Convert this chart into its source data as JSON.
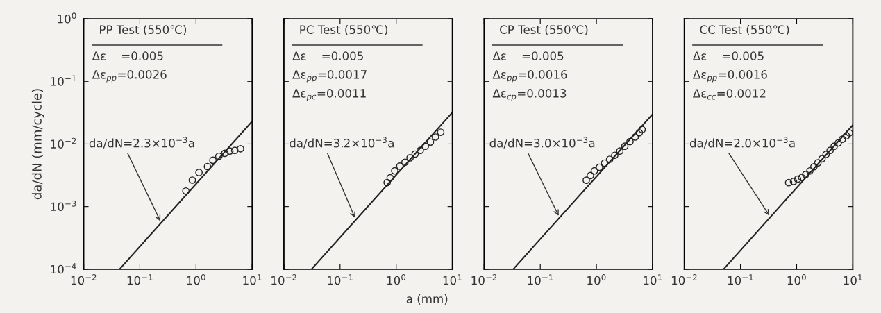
{
  "chart_data": [
    {
      "type": "scatter",
      "title": "PP Test (550℃)",
      "ylabel": "da/dN (mm/cycle)",
      "log": "xy",
      "xlim": [
        0.01,
        10
      ],
      "ylim": [
        0.0001,
        1
      ],
      "xticks": [
        {
          "value": 0.01,
          "label": "10$^{−2}$"
        },
        {
          "value": 0.1,
          "label": "10$^{−1}$"
        },
        {
          "value": 1,
          "label": "10$^{0}$"
        },
        {
          "value": 10,
          "label": "10$^{1}$"
        }
      ],
      "yticks": [
        {
          "value": 0.0001,
          "label": "10$^{−4}$"
        },
        {
          "value": 0.001,
          "label": "10$^{−3}$"
        },
        {
          "value": 0.01,
          "label": "10$^{−2}$"
        },
        {
          "value": 0.1,
          "label": "10$^{−1}$"
        },
        {
          "value": 1,
          "label": "10$^{0}$"
        }
      ],
      "series": [
        {
          "marker": "circle",
          "color": "#222222",
          "x": [
            0.66,
            0.86,
            1.13,
            1.6,
            2.0,
            2.55,
            3.25,
            4.0,
            4.9,
            6.2
          ],
          "values": [
            0.00177,
            0.00265,
            0.0035,
            0.00435,
            0.0055,
            0.00635,
            0.0071,
            0.0077,
            0.0079,
            0.0084
          ]
        },
        {
          "type": "line",
          "marker": "none",
          "color": "#222222",
          "x": [
            0.0435,
            10
          ],
          "values": [
            0.0001,
            0.023
          ]
        }
      ],
      "annotations": [
        "Δε    =0.005",
        "Δε$_{pp}$=0.0026",
        {
          "text": "da/dN=2.3×10$^{−3}$a",
          "x": 0.24,
          "y": 0.00055
        }
      ]
    },
    {
      "type": "scatter",
      "title": "PC Test (550℃)",
      "xlabel": "a (mm)",
      "log": "xy",
      "xlim": [
        0.01,
        10
      ],
      "ylim": [
        0.0001,
        1
      ],
      "tick_labels": "x",
      "xticks": [
        {
          "value": 0.01,
          "label": "10$^{−2}$"
        },
        {
          "value": 0.1,
          "label": "10$^{−1}$"
        },
        {
          "value": 1,
          "label": "10$^{0}$"
        },
        {
          "value": 10,
          "label": "10$^{1}$"
        }
      ],
      "yticks": [
        0.0001,
        0.001,
        0.01,
        0.1,
        1
      ],
      "series": [
        {
          "marker": "circle",
          "color": "#222222",
          "x": [
            0.69,
            0.78,
            0.94,
            1.16,
            1.43,
            1.76,
            2.17,
            2.68,
            3.3,
            4.06,
            5.0,
            6.2
          ],
          "values": [
            0.00242,
            0.00288,
            0.00372,
            0.00443,
            0.0051,
            0.006,
            0.0069,
            0.0079,
            0.0092,
            0.0107,
            0.0129,
            0.0154
          ]
        },
        {
          "type": "line",
          "marker": "none",
          "color": "#222222",
          "x": [
            0.031,
            10
          ],
          "values": [
            0.0001,
            0.032
          ]
        }
      ],
      "annotations": [
        "Δε    =0.005",
        "Δε$_{pp}$=0.0017",
        "Δε$_{pc}$=0.0011",
        {
          "text": "da/dN=3.2×10$^{−3}$a",
          "x": 0.19,
          "y": 0.00062
        }
      ]
    },
    {
      "type": "scatter",
      "title": "CP Test (550℃)",
      "log": "xy",
      "xlim": [
        0.01,
        10
      ],
      "ylim": [
        0.0001,
        1
      ],
      "tick_labels": "x",
      "xticks": [
        {
          "value": 0.01,
          "label": "10$^{−2}$"
        },
        {
          "value": 0.1,
          "label": "10$^{−1}$"
        },
        {
          "value": 1,
          "label": "10$^{0}$"
        },
        {
          "value": 10,
          "label": "10$^{1}$"
        }
      ],
      "yticks": [
        0.0001,
        0.001,
        0.01,
        0.1,
        1
      ],
      "series": [
        {
          "marker": "circle",
          "color": "#222222",
          "x": [
            0.66,
            0.78,
            0.92,
            1.13,
            1.4,
            1.72,
            2.12,
            2.61,
            3.2,
            3.96,
            4.9,
            5.8,
            6.5
          ],
          "values": [
            0.00264,
            0.00313,
            0.00372,
            0.00424,
            0.00494,
            0.0057,
            0.0066,
            0.0077,
            0.0092,
            0.0109,
            0.0129,
            0.0151,
            0.017
          ]
        },
        {
          "type": "line",
          "marker": "none",
          "color": "#222222",
          "x": [
            0.033,
            10
          ],
          "values": [
            0.0001,
            0.03
          ]
        }
      ],
      "annotations": [
        "Δε    =0.005",
        "Δε$_{pp}$=0.0016",
        "Δε$_{cp}$=0.0013",
        {
          "text": "da/dN=3.0×10$^{−3}$a",
          "x": 0.22,
          "y": 0.00067
        }
      ]
    },
    {
      "type": "scatter",
      "title": "CC Test (550℃)",
      "log": "xy",
      "xlim": [
        0.01,
        10
      ],
      "ylim": [
        0.0001,
        1
      ],
      "tick_labels": "x",
      "xticks": [
        {
          "value": 0.01,
          "label": "10$^{−2}$"
        },
        {
          "value": 0.1,
          "label": "10$^{−1}$"
        },
        {
          "value": 1,
          "label": "10$^{0}$"
        },
        {
          "value": 10,
          "label": "10$^{1}$"
        }
      ],
      "yticks": [
        0.0001,
        0.001,
        0.01,
        0.1,
        1
      ],
      "series": [
        {
          "marker": "circle",
          "color": "#222222",
          "x": [
            0.72,
            0.88,
            1.04,
            1.23,
            1.45,
            1.72,
            2.03,
            2.39,
            2.83,
            3.34,
            3.94,
            4.65,
            5.5,
            6.5,
            7.7,
            8.7
          ],
          "values": [
            0.00241,
            0.00252,
            0.00274,
            0.00291,
            0.00326,
            0.00371,
            0.00433,
            0.005,
            0.0058,
            0.0068,
            0.0079,
            0.0092,
            0.0104,
            0.0119,
            0.0135,
            0.015
          ]
        },
        {
          "type": "line",
          "marker": "none",
          "color": "#222222",
          "x": [
            0.05,
            10
          ],
          "values": [
            0.0001,
            0.02
          ]
        }
      ],
      "annotations": [
        "Δε    =0.005",
        "Δε$_{pp}$=0.0016",
        "Δε$_{cc}$=0.0012",
        {
          "text": "da/dN=2.0×10$^{−3}$a",
          "x": 0.34,
          "y": 0.00068
        }
      ]
    }
  ]
}
